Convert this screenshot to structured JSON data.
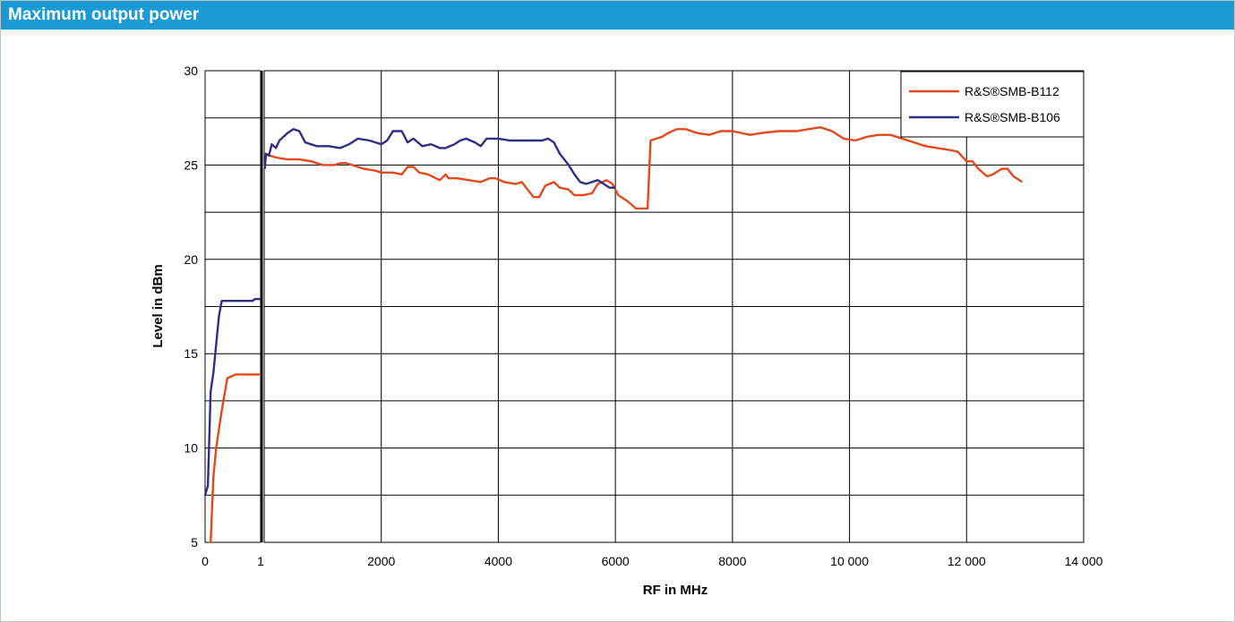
{
  "header": {
    "title": "Maximum output power"
  },
  "colors": {
    "header_bg": "#1c9ad6",
    "series_orange": "#e2491c",
    "series_navy": "#2e2e86"
  },
  "chart_data": {
    "type": "line",
    "title": "",
    "xlabel": "RF in MHz",
    "ylabel": "Level in dBm",
    "ylim": [
      5,
      30
    ],
    "y_ticks": [
      5,
      10,
      15,
      20,
      25,
      30
    ],
    "grid": true,
    "legend_position": "top-right",
    "panels": [
      {
        "name": "low",
        "xlim": [
          0,
          1
        ],
        "x_ticks": [
          "0",
          "1"
        ]
      },
      {
        "name": "high",
        "xlim": [
          0,
          14000
        ],
        "x_ticks": [
          "2000",
          "4000",
          "6000",
          "8000",
          "10 000",
          "12 000",
          "14 000"
        ]
      }
    ],
    "series": [
      {
        "name": "R&S®SMB-B112",
        "color": "#e2491c",
        "low": [
          [
            0.1,
            5
          ],
          [
            0.15,
            8.5
          ],
          [
            0.2,
            10
          ],
          [
            0.3,
            12
          ],
          [
            0.4,
            13.7
          ],
          [
            0.55,
            13.9
          ],
          [
            0.7,
            13.9
          ],
          [
            0.85,
            13.9
          ],
          [
            1.0,
            13.9
          ]
        ],
        "high": [
          [
            10,
            25.6
          ],
          [
            100,
            25.5
          ],
          [
            200,
            25.4
          ],
          [
            400,
            25.3
          ],
          [
            600,
            25.3
          ],
          [
            800,
            25.2
          ],
          [
            1000,
            25.0
          ],
          [
            1200,
            25.0
          ],
          [
            1300,
            25.1
          ],
          [
            1400,
            25.1
          ],
          [
            1500,
            25.0
          ],
          [
            1700,
            24.8
          ],
          [
            1900,
            24.7
          ],
          [
            2000,
            24.6
          ],
          [
            2200,
            24.6
          ],
          [
            2350,
            24.5
          ],
          [
            2450,
            24.9
          ],
          [
            2550,
            24.9
          ],
          [
            2650,
            24.6
          ],
          [
            2800,
            24.5
          ],
          [
            3000,
            24.2
          ],
          [
            3100,
            24.5
          ],
          [
            3150,
            24.3
          ],
          [
            3300,
            24.3
          ],
          [
            3500,
            24.2
          ],
          [
            3700,
            24.1
          ],
          [
            3850,
            24.3
          ],
          [
            3950,
            24.3
          ],
          [
            4100,
            24.1
          ],
          [
            4300,
            24.0
          ],
          [
            4400,
            24.1
          ],
          [
            4500,
            23.7
          ],
          [
            4600,
            23.3
          ],
          [
            4700,
            23.3
          ],
          [
            4800,
            23.9
          ],
          [
            4950,
            24.1
          ],
          [
            5050,
            23.8
          ],
          [
            5200,
            23.7
          ],
          [
            5300,
            23.4
          ],
          [
            5450,
            23.4
          ],
          [
            5600,
            23.5
          ],
          [
            5700,
            24.0
          ],
          [
            5850,
            24.2
          ],
          [
            5950,
            24.0
          ],
          [
            6050,
            23.4
          ],
          [
            6200,
            23.1
          ],
          [
            6350,
            22.7
          ],
          [
            6550,
            22.7
          ],
          [
            6600,
            26.3
          ],
          [
            6700,
            26.4
          ],
          [
            6800,
            26.5
          ],
          [
            6900,
            26.7
          ],
          [
            7050,
            26.9
          ],
          [
            7200,
            26.9
          ],
          [
            7400,
            26.7
          ],
          [
            7600,
            26.6
          ],
          [
            7800,
            26.8
          ],
          [
            8000,
            26.8
          ],
          [
            8300,
            26.6
          ],
          [
            8500,
            26.7
          ],
          [
            8800,
            26.8
          ],
          [
            9100,
            26.8
          ],
          [
            9300,
            26.9
          ],
          [
            9500,
            27.0
          ],
          [
            9700,
            26.8
          ],
          [
            9900,
            26.4
          ],
          [
            10100,
            26.3
          ],
          [
            10300,
            26.5
          ],
          [
            10500,
            26.6
          ],
          [
            10700,
            26.6
          ],
          [
            10900,
            26.4
          ],
          [
            11100,
            26.2
          ],
          [
            11300,
            26.0
          ],
          [
            11500,
            25.9
          ],
          [
            11700,
            25.8
          ],
          [
            11850,
            25.7
          ],
          [
            12000,
            25.2
          ],
          [
            12100,
            25.2
          ],
          [
            12200,
            24.8
          ],
          [
            12350,
            24.4
          ],
          [
            12450,
            24.5
          ],
          [
            12600,
            24.8
          ],
          [
            12700,
            24.8
          ],
          [
            12800,
            24.4
          ],
          [
            12950,
            24.1
          ]
        ]
      },
      {
        "name": "R&S®SMB-B106",
        "color": "#2e2e86",
        "low": [
          [
            0.0,
            7.5
          ],
          [
            0.05,
            8.0
          ],
          [
            0.08,
            11.0
          ],
          [
            0.1,
            13.0
          ],
          [
            0.15,
            14.0
          ],
          [
            0.2,
            15.5
          ],
          [
            0.25,
            17.0
          ],
          [
            0.3,
            17.8
          ],
          [
            0.5,
            17.8
          ],
          [
            0.7,
            17.8
          ],
          [
            0.85,
            17.8
          ],
          [
            0.9,
            17.9
          ],
          [
            1.0,
            17.9
          ]
        ],
        "high": [
          [
            10,
            24.8
          ],
          [
            30,
            25.6
          ],
          [
            80,
            25.5
          ],
          [
            130,
            26.1
          ],
          [
            200,
            25.9
          ],
          [
            260,
            26.3
          ],
          [
            330,
            26.5
          ],
          [
            400,
            26.7
          ],
          [
            500,
            26.9
          ],
          [
            600,
            26.8
          ],
          [
            700,
            26.2
          ],
          [
            900,
            26.0
          ],
          [
            1100,
            26.0
          ],
          [
            1300,
            25.9
          ],
          [
            1450,
            26.1
          ],
          [
            1600,
            26.4
          ],
          [
            1800,
            26.3
          ],
          [
            1900,
            26.2
          ],
          [
            2000,
            26.1
          ],
          [
            2100,
            26.3
          ],
          [
            2200,
            26.8
          ],
          [
            2350,
            26.8
          ],
          [
            2450,
            26.2
          ],
          [
            2550,
            26.4
          ],
          [
            2700,
            26.0
          ],
          [
            2850,
            26.1
          ],
          [
            3000,
            25.9
          ],
          [
            3100,
            25.9
          ],
          [
            3250,
            26.1
          ],
          [
            3350,
            26.3
          ],
          [
            3450,
            26.4
          ],
          [
            3600,
            26.2
          ],
          [
            3700,
            26.0
          ],
          [
            3800,
            26.4
          ],
          [
            4000,
            26.4
          ],
          [
            4200,
            26.3
          ],
          [
            4400,
            26.3
          ],
          [
            4600,
            26.3
          ],
          [
            4750,
            26.3
          ],
          [
            4850,
            26.4
          ],
          [
            4950,
            26.2
          ],
          [
            5050,
            25.6
          ],
          [
            5200,
            25.0
          ],
          [
            5300,
            24.5
          ],
          [
            5400,
            24.1
          ],
          [
            5500,
            24.0
          ],
          [
            5600,
            24.1
          ],
          [
            5700,
            24.2
          ],
          [
            5800,
            24.0
          ],
          [
            5900,
            23.8
          ],
          [
            6000,
            23.8
          ]
        ]
      }
    ]
  }
}
